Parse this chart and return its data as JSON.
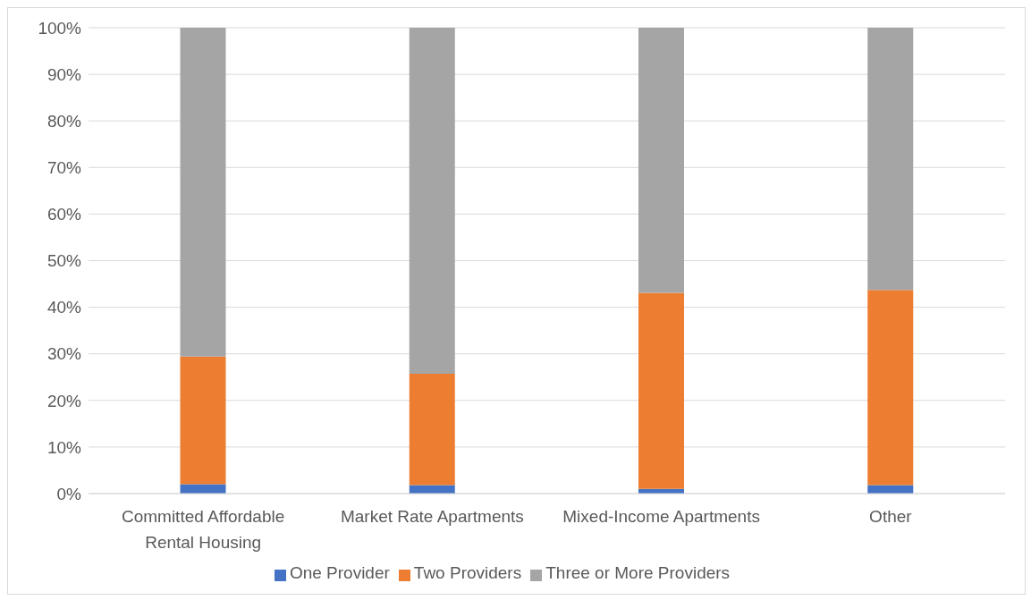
{
  "chart_data": {
    "type": "bar",
    "stacked": true,
    "categories": [
      "Committed Affordable Rental Housing",
      "Market Rate Apartments",
      "Mixed-Income Apartments",
      "Other"
    ],
    "series": [
      {
        "name": "One Provider",
        "color": "#4472c4",
        "values": [
          2,
          1.8,
          1,
          1.8
        ]
      },
      {
        "name": "Two Providers",
        "color": "#ed7d31",
        "values": [
          27.4,
          23.9,
          42.1,
          41.9
        ]
      },
      {
        "name": "Three or More Providers",
        "color": "#a5a5a5",
        "values": [
          70.6,
          74.3,
          56.9,
          56.3
        ]
      }
    ],
    "ylim": [
      0,
      100
    ],
    "yticks": [
      {
        "value": 0,
        "label": "0%"
      },
      {
        "value": 10,
        "label": "10%"
      },
      {
        "value": 20,
        "label": "20%"
      },
      {
        "value": 30,
        "label": "30%"
      },
      {
        "value": 40,
        "label": "40%"
      },
      {
        "value": 50,
        "label": "50%"
      },
      {
        "value": 60,
        "label": "60%"
      },
      {
        "value": 70,
        "label": "70%"
      },
      {
        "value": 80,
        "label": "80%"
      },
      {
        "value": 90,
        "label": "90%"
      },
      {
        "value": 100,
        "label": "100%"
      }
    ],
    "grid": "y",
    "legend": "bottom"
  }
}
